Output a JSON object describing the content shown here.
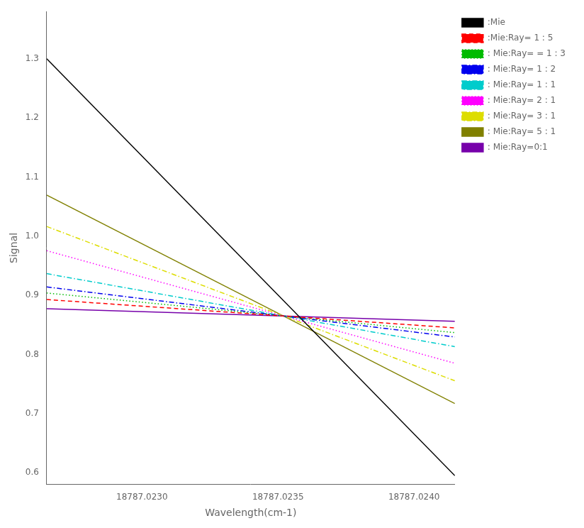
{
  "chart_data": {
    "type": "line",
    "x_label": "Wavelength(cm-1)",
    "y_label": "Signal",
    "x": [
      18787.02265,
      18787.02415
    ],
    "series": [
      {
        "name": ":Mie",
        "color": "#000000",
        "line_style": "solid",
        "values": [
          1.3,
          0.595
        ]
      },
      {
        "name": ":Mie:Ray= 1 : 5",
        "color": "#ff0000",
        "line_style": "dashed",
        "values": [
          0.8928052,
          0.8448652
        ]
      },
      {
        "name": ": Mie:Ray= = 1 : 3",
        "color": "#00bb00",
        "line_style": "dotted",
        "values": [
          0.9038455,
          0.8368705
        ]
      },
      {
        "name": ": Mie:Ray= 1 : 2",
        "color": "#0000ee",
        "line_style": "dashdot",
        "values": [
          0.914068,
          0.829468
        ]
      },
      {
        "name": ": Mie:Ray= 1 : 1",
        "color": "#00cccc",
        "line_style": "dashdot",
        "values": [
          0.9365575,
          0.8131825
        ]
      },
      {
        "name": ": Mie:Ray= 2 : 1",
        "color": "#ff00ff",
        "line_style": "dotted",
        "values": [
          0.975403,
          0.785053
        ]
      },
      {
        "name": ": Mie:Ray= 3 : 1",
        "color": "#dddd00",
        "line_style": "dashdot",
        "values": [
          1.016293,
          0.755443
        ]
      },
      {
        "name": ": Mie:Ray= 5 : 1",
        "color": "#808000",
        "line_style": "solid",
        "values": [
          1.06945,
          0.71695
        ]
      },
      {
        "name": ": Mie:Ray=0:1",
        "color": "#7700aa",
        "line_style": "solid",
        "values": [
          0.877267,
          0.856117
        ]
      }
    ],
    "xlim": [
      18787.02265,
      18787.02415
    ],
    "xticks": [
      {
        "value": 18787.023,
        "label": "18787.0230"
      },
      {
        "value": 18787.0235,
        "label": "18787.0235"
      },
      {
        "value": 18787.024,
        "label": "18787.0240"
      }
    ],
    "ylim": [
      0.58,
      1.38
    ],
    "yticks": [
      0.6,
      0.7,
      0.8,
      0.9,
      {
        "value": 1,
        "label": "1.0"
      },
      1.1,
      1.2,
      1.3
    ],
    "grid": false,
    "legend": "upper right"
  }
}
